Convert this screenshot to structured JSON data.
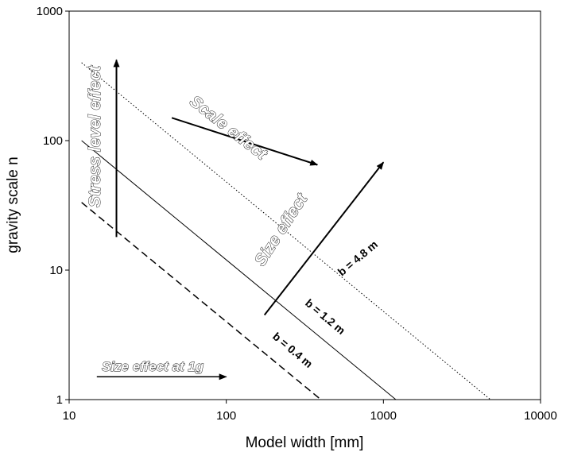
{
  "chart_data": {
    "type": "line",
    "x_scale": "log",
    "y_scale": "log",
    "xlim": [
      10,
      10000
    ],
    "ylim": [
      1,
      1000
    ],
    "xlabel": "Model width [mm]",
    "ylabel": "gravity scale n",
    "x_tick_labels": [
      "10",
      "100",
      "1000",
      "10000"
    ],
    "y_tick_labels": [
      "1",
      "10",
      "100",
      "1000"
    ],
    "grid": false,
    "legend": "none",
    "series": [
      {
        "name": "b = 0.4 m",
        "style": "dashed",
        "color": "#000000",
        "x": [
          12,
          400
        ],
        "y": [
          33.3,
          1
        ]
      },
      {
        "name": "b = 1.2 m",
        "style": "solid",
        "color": "#000000",
        "x": [
          12,
          1200
        ],
        "y": [
          100,
          1
        ]
      },
      {
        "name": "b = 4.8 m",
        "style": "dotted",
        "color": "#000000",
        "x": [
          12,
          4800
        ],
        "y": [
          400,
          1
        ]
      }
    ],
    "annotations": {
      "stress_level": {
        "text": "Stress level effect",
        "from": [
          20,
          18
        ],
        "to": [
          20,
          420
        ]
      },
      "scale": {
        "text": "Scale effect",
        "from": [
          45,
          150
        ],
        "to": [
          380,
          65
        ]
      },
      "size": {
        "text": "Size effect",
        "from": [
          175,
          4.5
        ],
        "to": [
          1000,
          68
        ]
      },
      "size_1g": {
        "text": "Size effect at 1g",
        "from": [
          15,
          1.5
        ],
        "to": [
          100,
          1.5
        ]
      }
    }
  }
}
